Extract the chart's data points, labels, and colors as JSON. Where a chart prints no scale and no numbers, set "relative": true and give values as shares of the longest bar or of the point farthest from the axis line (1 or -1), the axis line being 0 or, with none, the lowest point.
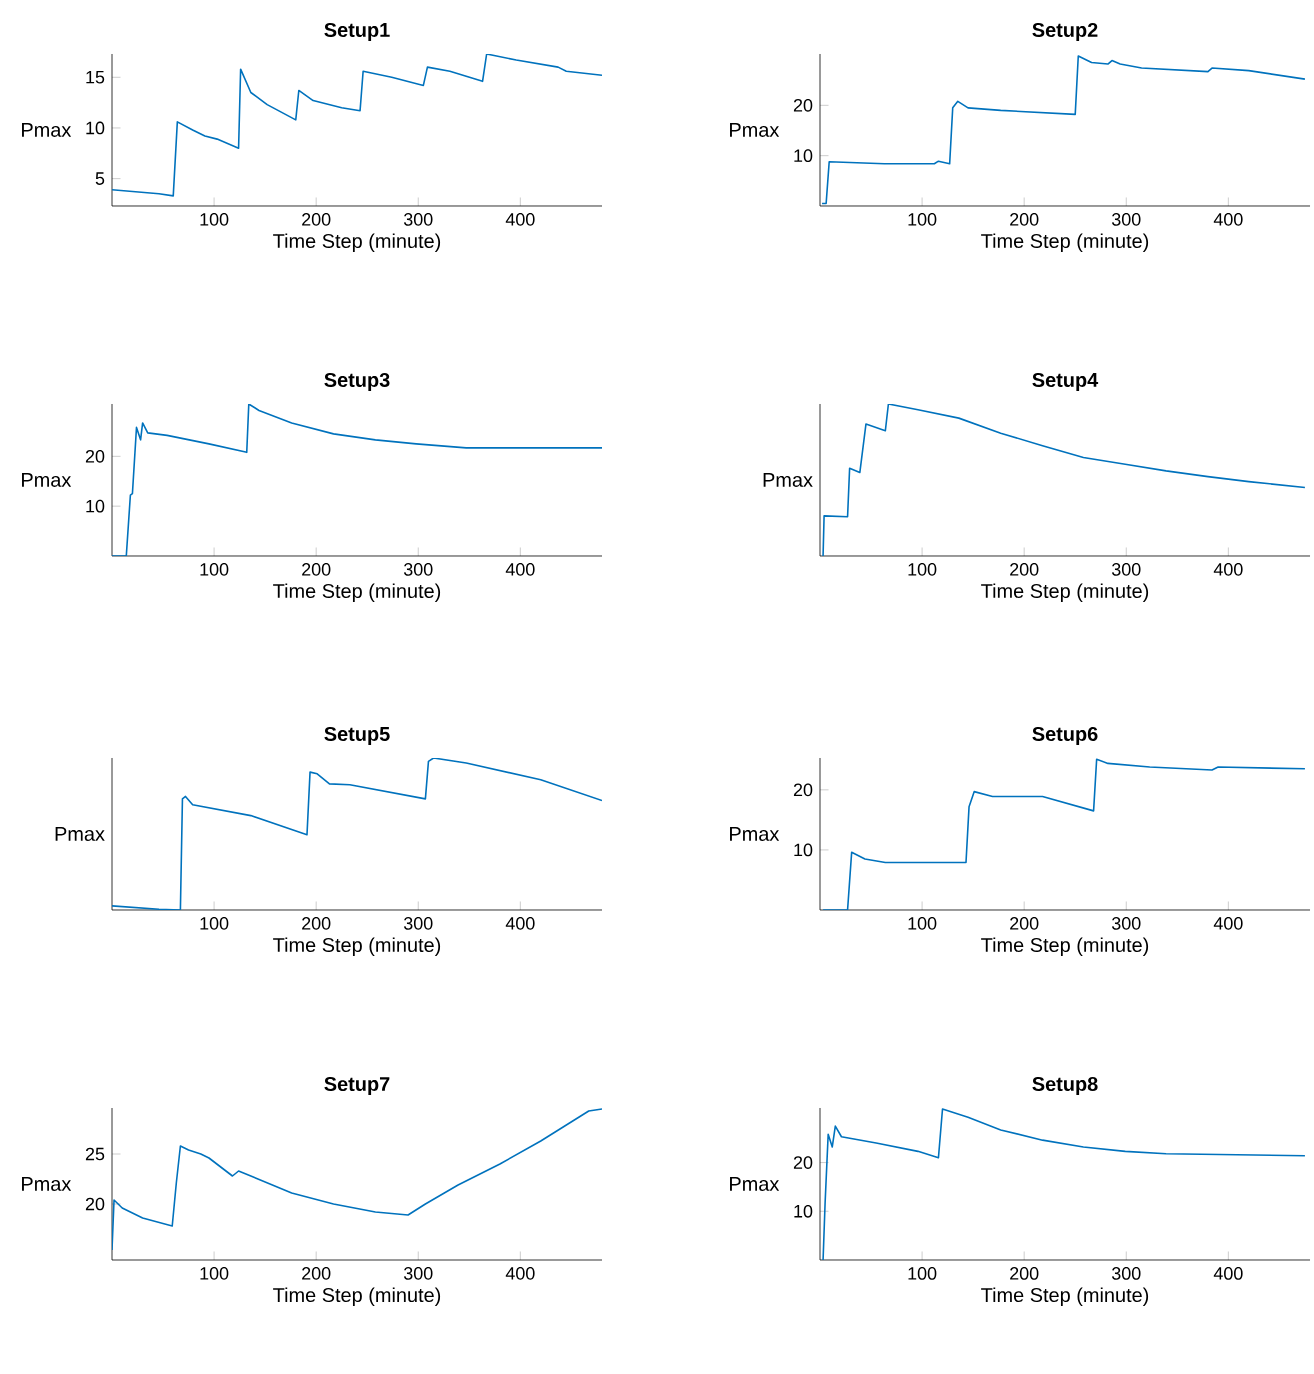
{
  "chart_data": [
    {
      "type": "line",
      "title": "Setup1",
      "xlabel": "Time Step (minute)",
      "ylabel": "Pmax",
      "color": "#0072bd",
      "xlim": [
        0,
        480
      ],
      "xticks": [
        100,
        200,
        300,
        400
      ],
      "ylim": [
        2.3,
        17.3
      ],
      "yticks": [
        5,
        10,
        15
      ],
      "x": [
        0,
        46,
        60,
        64,
        79,
        91,
        103,
        124,
        126,
        136,
        152,
        180,
        183,
        197,
        225,
        243,
        246,
        274,
        305,
        309,
        331,
        363,
        367,
        396,
        437,
        445,
        480
      ],
      "values": [
        3.9,
        3.5,
        3.3,
        10.6,
        9.8,
        9.2,
        8.9,
        8.0,
        15.8,
        13.5,
        12.3,
        10.8,
        13.7,
        12.7,
        12.0,
        11.7,
        15.6,
        15.0,
        14.2,
        16.0,
        15.6,
        14.6,
        17.3,
        16.7,
        16.0,
        15.6,
        15.2
      ]
    },
    {
      "type": "line",
      "title": "Setup2",
      "xlabel": "Time Step (minute)",
      "ylabel": "Pmax",
      "color": "#0072bd",
      "xlim": [
        0,
        480
      ],
      "xticks": [
        100,
        200,
        300,
        400
      ],
      "ylim": [
        0,
        30.2
      ],
      "yticks": [
        10,
        20
      ],
      "x": [
        2,
        6,
        9,
        63,
        112,
        116,
        127,
        130,
        135,
        145,
        177,
        250,
        253,
        266,
        282,
        286,
        294,
        315,
        380,
        384,
        420,
        475
      ],
      "values": [
        0.5,
        0.5,
        8.8,
        8.4,
        8.4,
        8.9,
        8.4,
        19.5,
        20.8,
        19.5,
        19.0,
        18.2,
        29.8,
        28.5,
        28.2,
        28.9,
        28.2,
        27.4,
        26.7,
        27.4,
        26.9,
        25.2
      ]
    },
    {
      "type": "line",
      "title": "Setup3",
      "xlabel": "Time Step (minute)",
      "ylabel": "Pmax",
      "color": "#0072bd",
      "xlim": [
        0,
        480
      ],
      "xticks": [
        100,
        200,
        300,
        400
      ],
      "ylim": [
        0,
        30.5
      ],
      "yticks": [
        10,
        20
      ],
      "x": [
        0,
        14,
        18,
        20,
        24,
        28,
        30,
        35,
        54,
        95,
        132,
        134,
        144,
        176,
        217,
        258,
        298,
        347,
        396,
        480
      ],
      "values": [
        0,
        0,
        12.2,
        12.5,
        25.8,
        23.3,
        26.7,
        24.7,
        24.2,
        22.5,
        20.8,
        30.5,
        29.2,
        26.7,
        24.5,
        23.3,
        22.5,
        21.7,
        21.7,
        21.7
      ]
    },
    {
      "type": "line",
      "title": "Setup4",
      "xlabel": "Time Step (minute)",
      "ylabel": "Pmax",
      "color": "#0072bd",
      "xlim": [
        0,
        480
      ],
      "xticks": [
        100,
        200,
        300,
        400
      ],
      "relative": true,
      "x": [
        3,
        4,
        27,
        29,
        39,
        45,
        64,
        67,
        96,
        136,
        177,
        218,
        258,
        299,
        339,
        380,
        420,
        475
      ],
      "values": [
        0,
        0.264,
        0.258,
        0.577,
        0.549,
        0.868,
        0.824,
        1.0,
        0.962,
        0.907,
        0.808,
        0.725,
        0.648,
        0.604,
        0.56,
        0.522,
        0.489,
        0.451
      ]
    },
    {
      "type": "line",
      "title": "Setup5",
      "xlabel": "Time Step (minute)",
      "ylabel": "Pmax",
      "color": "#0072bd",
      "xlim": [
        0,
        480
      ],
      "xticks": [
        100,
        200,
        300,
        400
      ],
      "relative": true,
      "x": [
        0,
        46,
        67,
        69,
        72,
        79,
        136,
        191,
        194,
        201,
        213,
        233,
        307,
        310,
        315,
        347,
        420,
        480
      ],
      "values": [
        0.027,
        0.005,
        0,
        0.731,
        0.747,
        0.692,
        0.621,
        0.495,
        0.907,
        0.896,
        0.83,
        0.824,
        0.731,
        0.978,
        1.0,
        0.967,
        0.857,
        0.72
      ]
    },
    {
      "type": "line",
      "title": "Setup6",
      "xlabel": "Time Step (minute)",
      "ylabel": "Pmax",
      "color": "#0072bd",
      "xlim": [
        0,
        480
      ],
      "xticks": [
        100,
        200,
        300,
        400
      ],
      "ylim": [
        0,
        25.3
      ],
      "yticks": [
        10,
        20
      ],
      "x": [
        3,
        27,
        31,
        44,
        64,
        143,
        146,
        151,
        169,
        218,
        268,
        271,
        282,
        323,
        384,
        390,
        475
      ],
      "values": [
        0,
        0,
        9.6,
        8.5,
        7.9,
        7.9,
        17.2,
        19.7,
        18.9,
        18.9,
        16.5,
        25.1,
        24.4,
        23.8,
        23.3,
        23.8,
        23.5
      ]
    },
    {
      "type": "line",
      "title": "Setup7",
      "xlabel": "Time Step (minute)",
      "ylabel": "Pmax",
      "color": "#0072bd",
      "xlim": [
        0,
        480
      ],
      "xticks": [
        100,
        200,
        300,
        400
      ],
      "ylim": [
        14.4,
        29.6
      ],
      "yticks": [
        20,
        25
      ],
      "x": [
        0,
        2,
        10,
        30,
        59,
        63,
        67,
        75,
        87,
        95,
        118,
        124,
        136,
        176,
        217,
        258,
        290,
        307,
        339,
        380,
        420,
        467,
        480
      ],
      "values": [
        15.4,
        20.4,
        19.6,
        18.6,
        17.8,
        22.1,
        25.8,
        25.4,
        25.0,
        24.6,
        22.8,
        23.3,
        22.8,
        21.1,
        20.0,
        19.2,
        18.9,
        20.0,
        21.9,
        24.0,
        26.3,
        29.3,
        29.5
      ]
    },
    {
      "type": "line",
      "title": "Setup8",
      "xlabel": "Time Step (minute)",
      "ylabel": "Pmax",
      "color": "#0072bd",
      "xlim": [
        0,
        480
      ],
      "xticks": [
        100,
        200,
        300,
        400
      ],
      "ylim": [
        0,
        31.2
      ],
      "yticks": [
        10,
        20
      ],
      "x": [
        3,
        5,
        8,
        12,
        15,
        21,
        55,
        96,
        116,
        120,
        145,
        177,
        218,
        258,
        299,
        339,
        475
      ],
      "values": [
        0,
        11.8,
        25.8,
        23.2,
        27.5,
        25.3,
        24.0,
        22.3,
        21.0,
        31.0,
        29.3,
        26.7,
        24.6,
        23.2,
        22.3,
        21.8,
        21.4
      ]
    }
  ]
}
